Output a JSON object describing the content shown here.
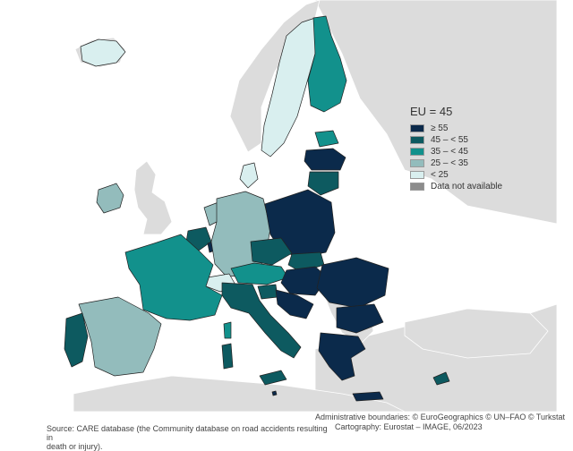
{
  "legend": {
    "title": "EU = 45",
    "classes": [
      {
        "label": "≥ 55",
        "color": "#0b2a4b"
      },
      {
        "label": "45 – < 55",
        "color": "#0d5a60"
      },
      {
        "label": "35 – < 45",
        "color": "#12918c"
      },
      {
        "label": "25 – < 35",
        "color": "#93bcbc"
      },
      {
        "label": "< 25",
        "color": "#d9efef"
      },
      {
        "label": "Data not available",
        "color": "#8c8c8c"
      }
    ]
  },
  "colors": {
    "non_eu_land": "#dcdcdc",
    "sea": "#ffffff",
    "border": "#222222"
  },
  "credits": {
    "boundaries": "Administrative boundaries: © EuroGeographics © UN–FAO © Turkstat",
    "cartography": "Cartography: Eurostat – IMAGE, 06/2023"
  },
  "source": {
    "line1": "Source: CARE database (the Community database on road accidents resulting in",
    "line2": "death or injury)."
  }
}
